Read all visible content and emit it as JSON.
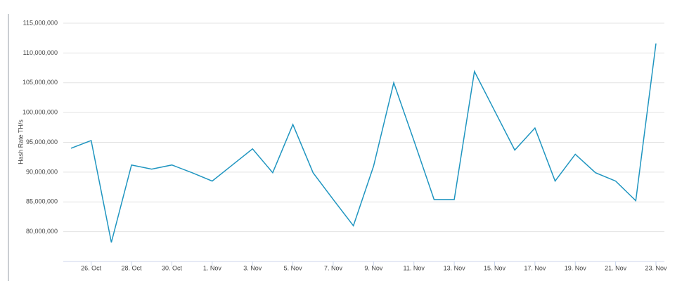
{
  "chart_data": {
    "type": "line",
    "y_label": "Hash Rate TH/s",
    "categories": [
      null,
      "26. Oct",
      null,
      "28. Oct",
      null,
      "30. Oct",
      null,
      "1. Nov",
      null,
      "3. Nov",
      null,
      "5. Nov",
      null,
      "7. Nov",
      null,
      "9. Nov",
      null,
      "11. Nov",
      null,
      "13. Nov",
      null,
      "15. Nov",
      null,
      "17. Nov",
      null,
      "19. Nov",
      null,
      "21. Nov",
      null,
      "23. Nov"
    ],
    "series": [
      {
        "color": "#1f95c0",
        "values": [
          94000000,
          95300000,
          78200000,
          91200000,
          90500000,
          91200000,
          89900000,
          88500000,
          91200000,
          93900000,
          89900000,
          98000000,
          89900000,
          85400000,
          81000000,
          91000000,
          105000000,
          95300000,
          85400000,
          85400000,
          106900000,
          100300000,
          93700000,
          97400000,
          88500000,
          93000000,
          89900000,
          88500000,
          85200000,
          111600000
        ]
      }
    ],
    "ylim": [
      75000000,
      115000000
    ],
    "yticks": [
      {
        "value": 80000000,
        "label": "80,000,000"
      },
      {
        "value": 85000000,
        "label": "85,000,000"
      },
      {
        "value": 90000000,
        "label": "90,000,000"
      },
      {
        "value": 95000000,
        "label": "95,000,000"
      },
      {
        "value": 100000000,
        "label": "100,000,000"
      },
      {
        "value": 105000000,
        "label": "105,000,000"
      },
      {
        "value": 110000000,
        "label": "110,000,000"
      },
      {
        "value": 115000000,
        "label": "115,000,000"
      }
    ],
    "grid": true
  }
}
